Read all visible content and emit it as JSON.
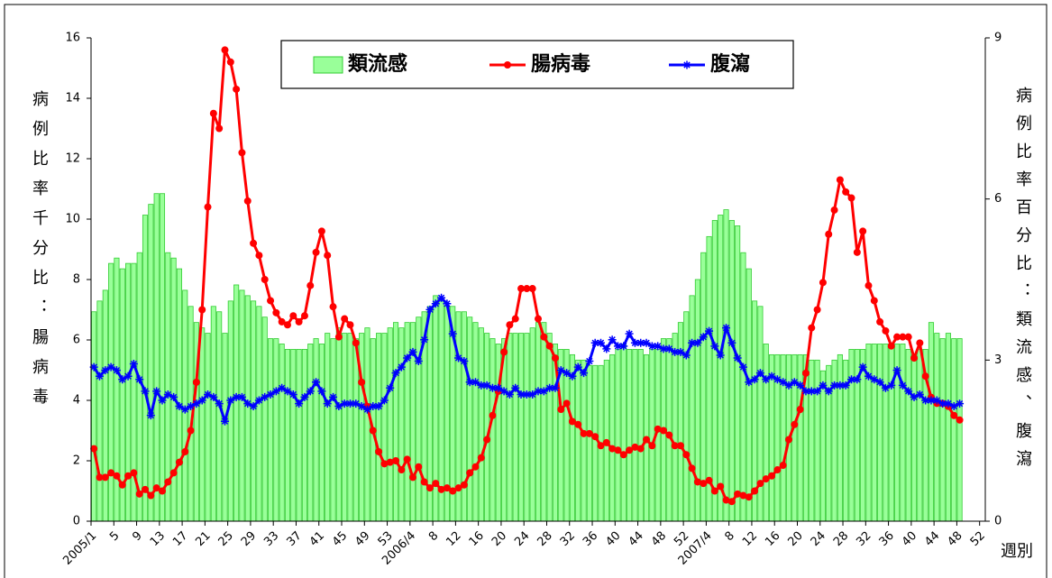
{
  "chart_data": {
    "type": "combo",
    "y_label": "病例比率千分比：腸病毒",
    "y2_label": "病例比率百分比：類流感、腹瀉",
    "x_label": "週別",
    "legend": "top",
    "ylim": [
      0,
      16
    ],
    "yticks": [
      0,
      2,
      4,
      6,
      8,
      10,
      12,
      14,
      16
    ],
    "y2lim": [
      0,
      9
    ],
    "y2ticks": [
      0,
      3,
      6,
      9
    ],
    "categories": [
      "2005/1",
      null,
      null,
      null,
      "5",
      null,
      null,
      null,
      "9",
      null,
      null,
      null,
      "13",
      null,
      null,
      null,
      "17",
      null,
      null,
      null,
      "21",
      null,
      null,
      null,
      "25",
      null,
      null,
      null,
      "29",
      null,
      null,
      null,
      "33",
      null,
      null,
      null,
      "37",
      null,
      null,
      null,
      "41",
      null,
      null,
      null,
      "45",
      null,
      null,
      null,
      "49",
      null,
      null,
      null,
      "53",
      null,
      null,
      null,
      "2006/4",
      null,
      null,
      null,
      "8",
      null,
      null,
      null,
      "12",
      null,
      null,
      null,
      "16",
      null,
      null,
      null,
      "20",
      null,
      null,
      null,
      "24",
      null,
      null,
      null,
      "28",
      null,
      null,
      null,
      "32",
      null,
      null,
      null,
      "36",
      null,
      null,
      null,
      "40",
      null,
      null,
      null,
      "44",
      null,
      null,
      null,
      "48",
      null,
      null,
      null,
      "52",
      null,
      null,
      null,
      "2007/4",
      null,
      null,
      null,
      "8",
      null,
      null,
      null,
      "12",
      null,
      null,
      null,
      "16",
      null,
      null,
      null,
      "20",
      null,
      null,
      null,
      "24",
      null,
      null,
      null,
      "28",
      null,
      null,
      null,
      "32",
      null,
      null,
      null,
      "36",
      null,
      null,
      null,
      "40",
      null,
      null,
      null,
      "44",
      null,
      null,
      null,
      "48",
      null,
      null,
      null,
      "52"
    ],
    "series": [
      {
        "name": "類流感",
        "type": "bar",
        "axis": "y2",
        "color": "#99ff99",
        "edgecolor": "#33cc33",
        "values": [
          3.9,
          4.1,
          4.3,
          4.8,
          4.9,
          4.7,
          4.8,
          4.8,
          5.0,
          5.7,
          5.9,
          6.1,
          6.1,
          5.0,
          4.9,
          4.7,
          4.3,
          4.0,
          3.7,
          3.6,
          3.5,
          4.0,
          3.9,
          3.5,
          4.1,
          4.4,
          4.3,
          4.2,
          4.1,
          4.0,
          3.8,
          3.4,
          3.4,
          3.3,
          3.2,
          3.2,
          3.2,
          3.2,
          3.3,
          3.4,
          3.3,
          3.5,
          3.4,
          3.6,
          3.5,
          3.5,
          3.4,
          3.5,
          3.6,
          3.4,
          3.5,
          3.5,
          3.6,
          3.7,
          3.6,
          3.7,
          3.7,
          3.8,
          3.9,
          4.0,
          4.2,
          4.1,
          4.0,
          4.0,
          3.9,
          3.9,
          3.8,
          3.7,
          3.6,
          3.5,
          3.4,
          3.3,
          3.4,
          3.5,
          3.5,
          3.5,
          3.5,
          3.6,
          3.7,
          3.7,
          3.5,
          3.3,
          3.2,
          3.2,
          3.1,
          3.0,
          3.0,
          2.9,
          2.9,
          2.9,
          3.0,
          3.1,
          3.2,
          3.3,
          3.2,
          3.2,
          3.2,
          3.1,
          3.2,
          3.2,
          3.4,
          3.4,
          3.5,
          3.7,
          3.9,
          4.2,
          4.5,
          5.0,
          5.3,
          5.6,
          5.7,
          5.8,
          5.6,
          5.5,
          5.0,
          4.7,
          4.1,
          4.0,
          3.3,
          3.1,
          3.1,
          3.1,
          3.1,
          3.1,
          3.1,
          3.1,
          3.0,
          3.0,
          2.8,
          2.9,
          3.0,
          3.1,
          3.0,
          3.2,
          3.2,
          3.2,
          3.3,
          3.3,
          3.3,
          3.3,
          3.3,
          3.3,
          3.3,
          3.2,
          3.1,
          3.2,
          3.2,
          3.7,
          3.5,
          3.4,
          3.5,
          3.4,
          3.4,
          null,
          null,
          null,
          null
        ]
      },
      {
        "name": "腸病毒",
        "type": "line",
        "axis": "y",
        "color": "#ff0000",
        "marker": "circle",
        "values": [
          2.4,
          1.45,
          1.45,
          1.6,
          1.5,
          1.2,
          1.5,
          1.6,
          0.9,
          1.05,
          0.85,
          1.1,
          1.0,
          1.3,
          1.6,
          1.95,
          2.3,
          3.0,
          4.6,
          7.0,
          10.4,
          13.5,
          13.0,
          15.6,
          15.2,
          14.3,
          12.2,
          10.6,
          9.2,
          8.8,
          8.0,
          7.3,
          6.9,
          6.6,
          6.5,
          6.8,
          6.6,
          6.8,
          7.8,
          8.9,
          9.6,
          8.8,
          7.1,
          6.1,
          6.7,
          6.5,
          5.9,
          4.6,
          3.8,
          3.0,
          2.3,
          1.9,
          1.95,
          2.0,
          1.7,
          2.05,
          1.45,
          1.8,
          1.3,
          1.1,
          1.25,
          1.05,
          1.1,
          1.0,
          1.1,
          1.2,
          1.6,
          1.8,
          2.1,
          2.7,
          3.5,
          4.3,
          5.6,
          6.5,
          6.7,
          7.7,
          7.7,
          7.7,
          6.7,
          6.1,
          5.8,
          5.4,
          3.7,
          3.9,
          3.3,
          3.2,
          2.9,
          2.9,
          2.8,
          2.5,
          2.6,
          2.4,
          2.35,
          2.2,
          2.35,
          2.45,
          2.4,
          2.7,
          2.5,
          3.05,
          3.0,
          2.85,
          2.5,
          2.5,
          2.2,
          1.75,
          1.3,
          1.25,
          1.35,
          1.0,
          1.15,
          0.7,
          0.65,
          0.9,
          0.85,
          0.8,
          1.0,
          1.25,
          1.4,
          1.5,
          1.7,
          1.85,
          2.7,
          3.2,
          3.7,
          4.9,
          6.4,
          7.0,
          7.9,
          9.5,
          10.3,
          11.3,
          10.9,
          10.7,
          8.9,
          9.6,
          7.8,
          7.3,
          6.6,
          6.3,
          5.8,
          6.1,
          6.1,
          6.1,
          5.4,
          5.9,
          4.8,
          4.1,
          3.9,
          3.9,
          3.8,
          3.5,
          3.35,
          null,
          null,
          null,
          null
        ]
      },
      {
        "name": "腹瀉",
        "type": "line",
        "axis": "y2",
        "color": "#0000ff",
        "marker": "asterisk",
        "values": [
          2.87,
          2.7,
          2.81,
          2.87,
          2.81,
          2.64,
          2.7,
          2.93,
          2.64,
          2.42,
          1.97,
          2.42,
          2.25,
          2.36,
          2.31,
          2.14,
          2.08,
          2.14,
          2.19,
          2.25,
          2.36,
          2.31,
          2.19,
          1.86,
          2.25,
          2.31,
          2.31,
          2.19,
          2.14,
          2.25,
          2.31,
          2.36,
          2.42,
          2.48,
          2.42,
          2.36,
          2.19,
          2.31,
          2.42,
          2.59,
          2.42,
          2.19,
          2.31,
          2.14,
          2.19,
          2.19,
          2.19,
          2.14,
          2.08,
          2.14,
          2.14,
          2.25,
          2.48,
          2.76,
          2.87,
          3.04,
          3.15,
          2.98,
          3.38,
          3.94,
          4.05,
          4.16,
          4.05,
          3.49,
          3.04,
          2.98,
          2.59,
          2.59,
          2.53,
          2.53,
          2.48,
          2.48,
          2.42,
          2.36,
          2.48,
          2.36,
          2.36,
          2.36,
          2.42,
          2.42,
          2.48,
          2.48,
          2.81,
          2.76,
          2.7,
          2.87,
          2.76,
          2.98,
          3.32,
          3.32,
          3.21,
          3.38,
          3.26,
          3.26,
          3.49,
          3.32,
          3.32,
          3.32,
          3.26,
          3.26,
          3.21,
          3.21,
          3.15,
          3.15,
          3.09,
          3.32,
          3.32,
          3.43,
          3.54,
          3.26,
          3.09,
          3.6,
          3.32,
          3.04,
          2.87,
          2.59,
          2.64,
          2.76,
          2.64,
          2.7,
          2.64,
          2.59,
          2.53,
          2.59,
          2.53,
          2.42,
          2.42,
          2.42,
          2.53,
          2.42,
          2.53,
          2.53,
          2.53,
          2.64,
          2.64,
          2.87,
          2.7,
          2.64,
          2.59,
          2.48,
          2.53,
          2.81,
          2.53,
          2.42,
          2.31,
          2.36,
          2.25,
          2.25,
          2.25,
          2.19,
          2.19,
          2.14,
          2.19,
          null,
          null,
          null,
          null
        ]
      }
    ]
  }
}
